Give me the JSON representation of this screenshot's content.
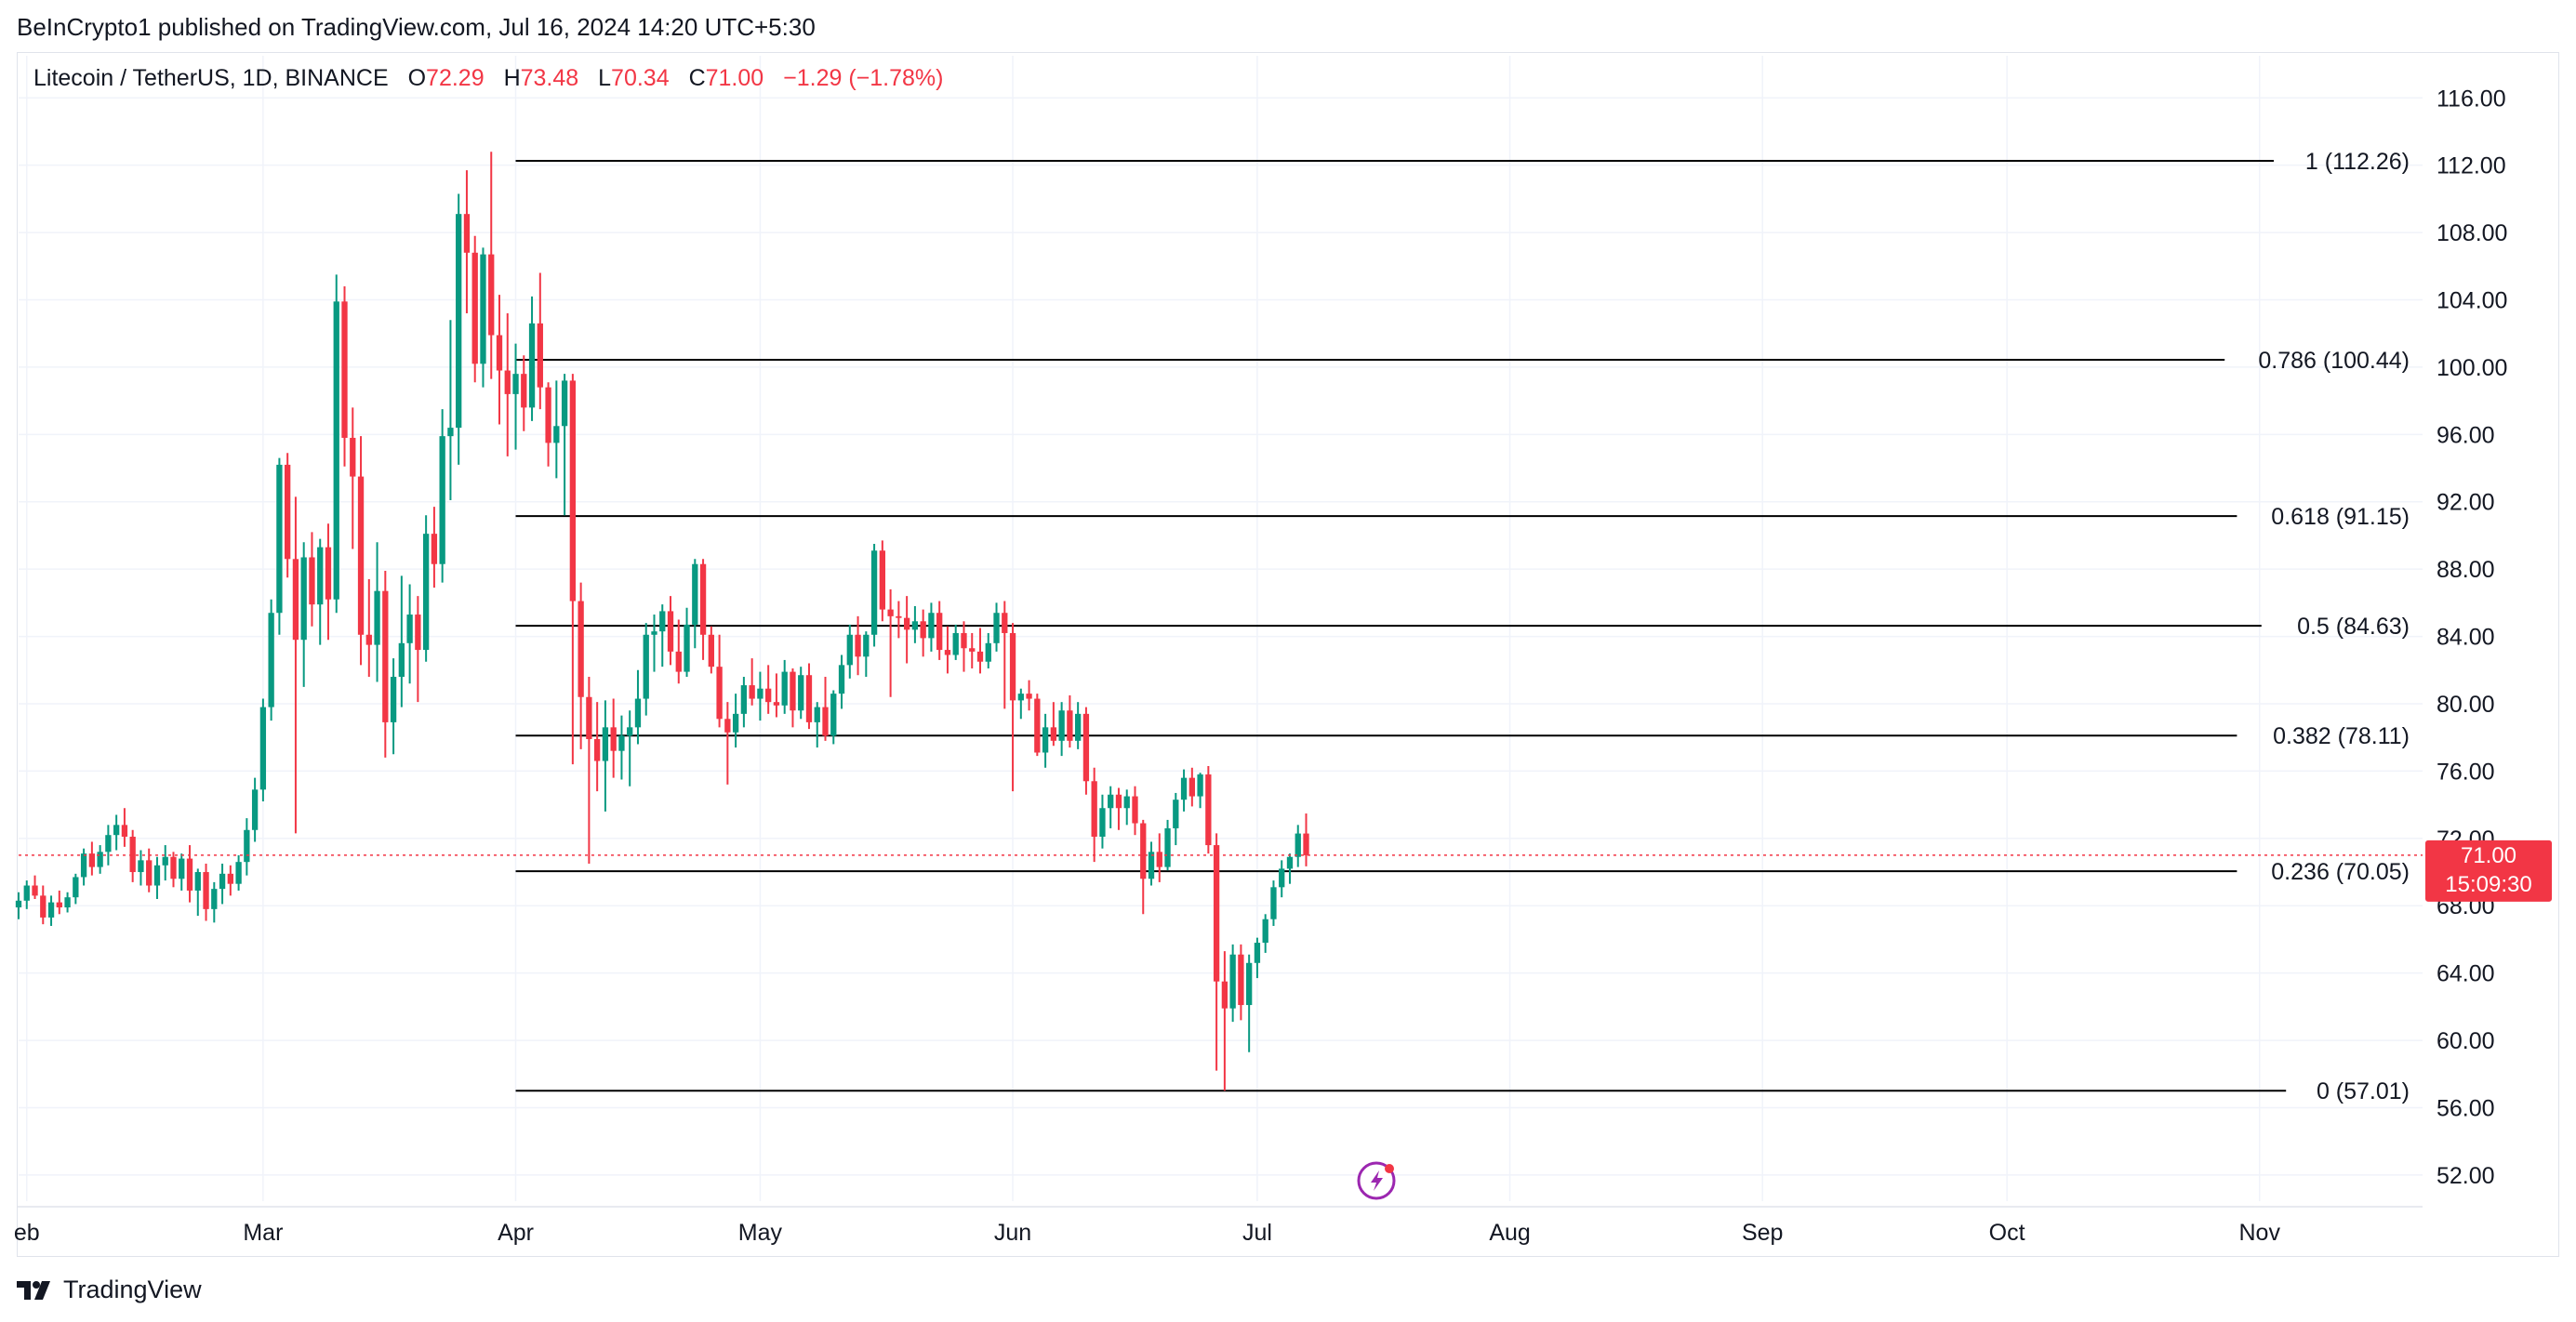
{
  "header": {
    "published": "BeInCrypto1 published on TradingView.com, Jul 16, 2024 14:20 UTC+5:30"
  },
  "legend": {
    "symbol": "Litecoin / TetherUS, 1D, BINANCE",
    "open_label": "O",
    "open": "72.29",
    "high_label": "H",
    "high": "73.48",
    "low_label": "L",
    "low": "70.34",
    "close_label": "C",
    "close": "71.00",
    "change": "−1.29 (−1.78%)"
  },
  "price_tag": {
    "price": "71.00",
    "countdown": "15:09:30"
  },
  "footer": {
    "brand": "TradingView"
  },
  "colors": {
    "up": "#089981",
    "down": "#f23645",
    "fib_line": "#000000",
    "grid": "#f0f3fa"
  },
  "chart_data": {
    "type": "candlestick",
    "title": "Litecoin / TetherUS, 1D, BINANCE",
    "y_axis": {
      "ticks": [
        "116.00",
        "112.00",
        "108.00",
        "104.00",
        "100.00",
        "96.00",
        "92.00",
        "88.00",
        "84.00",
        "80.00",
        "76.00",
        "72.00",
        "68.00",
        "64.00",
        "60.00",
        "56.00",
        "52.00"
      ],
      "range": [
        51,
        118.5
      ]
    },
    "x_axis": {
      "ticks": [
        "eb",
        "Mar",
        "Apr",
        "May",
        "Jun",
        "Jul",
        "Aug",
        "Sep",
        "Oct",
        "Nov"
      ],
      "tick_dates": [
        "2024-02-01",
        "2024-03-01",
        "2024-04-01",
        "2024-05-01",
        "2024-06-01",
        "2024-07-01",
        "2024-08-01",
        "2024-09-01",
        "2024-10-01",
        "2024-11-01"
      ],
      "range": [
        "2024-01-31",
        "2024-11-21"
      ]
    },
    "current_price": 71.0,
    "fibonacci": {
      "start_date": "2024-04-01",
      "levels": [
        {
          "ratio": "1",
          "value": 112.26,
          "label": "1 (112.26)"
        },
        {
          "ratio": "0.786",
          "value": 100.44,
          "label": "0.786 (100.44)"
        },
        {
          "ratio": "0.618",
          "value": 91.15,
          "label": "0.618 (91.15)"
        },
        {
          "ratio": "0.5",
          "value": 84.63,
          "label": "0.5 (84.63)"
        },
        {
          "ratio": "0.382",
          "value": 78.11,
          "label": "0.382 (78.11)"
        },
        {
          "ratio": "0.236",
          "value": 70.05,
          "label": "0.236 (70.05)"
        },
        {
          "ratio": "0",
          "value": 57.01,
          "label": "0 (57.01)"
        }
      ]
    },
    "first_date": "2024-01-31",
    "ohlc": [
      [
        67.9,
        68.8,
        67.2,
        68.3
      ],
      [
        68.3,
        69.5,
        67.8,
        69.2
      ],
      [
        69.2,
        69.8,
        68.4,
        68.6
      ],
      [
        68.6,
        69.2,
        66.9,
        67.3
      ],
      [
        67.3,
        68.6,
        66.8,
        68.2
      ],
      [
        68.2,
        68.9,
        67.5,
        67.9
      ],
      [
        67.9,
        68.8,
        67.6,
        68.5
      ],
      [
        68.5,
        69.9,
        68.1,
        69.7
      ],
      [
        69.7,
        71.4,
        69.2,
        71.1
      ],
      [
        71.1,
        71.8,
        69.8,
        70.3
      ],
      [
        70.3,
        71.6,
        69.9,
        71.2
      ],
      [
        71.2,
        72.8,
        70.4,
        72.2
      ],
      [
        72.2,
        73.4,
        71.3,
        72.8
      ],
      [
        72.8,
        73.8,
        71.5,
        72.1
      ],
      [
        72.1,
        72.5,
        69.4,
        70.0
      ],
      [
        70.0,
        71.3,
        69.2,
        70.7
      ],
      [
        70.7,
        71.4,
        68.8,
        69.2
      ],
      [
        69.2,
        70.9,
        68.4,
        70.4
      ],
      [
        70.4,
        71.6,
        69.5,
        70.9
      ],
      [
        70.9,
        71.2,
        69.1,
        69.6
      ],
      [
        69.6,
        71.1,
        68.9,
        70.8
      ],
      [
        70.8,
        71.6,
        68.2,
        68.9
      ],
      [
        68.9,
        70.2,
        67.4,
        70.0
      ],
      [
        70.0,
        70.5,
        67.1,
        67.8
      ],
      [
        67.8,
        69.4,
        67.0,
        69.0
      ],
      [
        69.0,
        70.5,
        68.1,
        69.9
      ],
      [
        69.9,
        70.4,
        68.6,
        69.3
      ],
      [
        69.3,
        71.0,
        68.9,
        70.6
      ],
      [
        70.6,
        73.2,
        69.8,
        72.5
      ],
      [
        72.5,
        75.6,
        71.8,
        74.9
      ],
      [
        74.9,
        80.3,
        74.2,
        79.8
      ],
      [
        79.8,
        86.2,
        79.0,
        85.4
      ],
      [
        85.4,
        94.6,
        84.1,
        94.2
      ],
      [
        94.2,
        94.9,
        87.5,
        88.6
      ],
      [
        88.6,
        92.3,
        72.3,
        83.8
      ],
      [
        83.8,
        89.6,
        81.0,
        88.7
      ],
      [
        88.7,
        90.2,
        84.6,
        85.9
      ],
      [
        85.9,
        89.8,
        83.5,
        89.3
      ],
      [
        89.3,
        90.7,
        83.8,
        86.2
      ],
      [
        86.2,
        105.5,
        85.4,
        103.9
      ],
      [
        103.9,
        104.8,
        94.1,
        95.8
      ],
      [
        95.8,
        97.6,
        89.2,
        93.5
      ],
      [
        93.5,
        95.9,
        82.3,
        84.1
      ],
      [
        84.1,
        87.4,
        81.6,
        83.5
      ],
      [
        83.5,
        89.6,
        81.3,
        86.7
      ],
      [
        86.7,
        87.9,
        76.8,
        78.9
      ],
      [
        78.9,
        82.7,
        77.0,
        81.6
      ],
      [
        81.6,
        87.6,
        79.8,
        83.6
      ],
      [
        83.6,
        87.1,
        81.2,
        85.3
      ],
      [
        85.3,
        86.4,
        80.1,
        83.2
      ],
      [
        83.2,
        91.2,
        82.5,
        90.1
      ],
      [
        90.1,
        91.7,
        86.9,
        88.3
      ],
      [
        88.3,
        97.5,
        87.2,
        95.9
      ],
      [
        95.9,
        102.8,
        92.1,
        96.4
      ],
      [
        96.4,
        110.3,
        94.2,
        109.1
      ],
      [
        109.1,
        111.7,
        103.2,
        106.8
      ],
      [
        106.8,
        107.8,
        99.1,
        100.2
      ],
      [
        100.2,
        107.1,
        98.8,
        106.7
      ],
      [
        106.7,
        112.8,
        99.3,
        101.9
      ],
      [
        101.9,
        104.3,
        96.6,
        99.8
      ],
      [
        99.8,
        103.2,
        94.7,
        98.4
      ],
      [
        98.4,
        101.4,
        95.1,
        99.6
      ],
      [
        99.6,
        100.7,
        96.2,
        97.6
      ],
      [
        97.6,
        104.2,
        96.8,
        102.6
      ],
      [
        102.6,
        105.6,
        97.5,
        98.8
      ],
      [
        98.8,
        99.1,
        94.1,
        95.5
      ],
      [
        95.5,
        99.2,
        93.4,
        96.5
      ],
      [
        96.5,
        99.6,
        91.2,
        99.2
      ],
      [
        99.2,
        99.6,
        76.4,
        86.1
      ],
      [
        86.1,
        87.2,
        77.3,
        80.4
      ],
      [
        80.4,
        81.6,
        70.5,
        77.9
      ],
      [
        77.9,
        80.1,
        74.8,
        76.6
      ],
      [
        76.6,
        80.2,
        73.6,
        78.6
      ],
      [
        78.6,
        80.3,
        75.6,
        77.2
      ],
      [
        77.2,
        79.3,
        75.5,
        78.1
      ],
      [
        78.1,
        79.6,
        75.1,
        78.6
      ],
      [
        78.6,
        82.0,
        77.6,
        80.3
      ],
      [
        80.3,
        84.8,
        79.3,
        84.1
      ],
      [
        84.1,
        85.3,
        81.9,
        84.3
      ],
      [
        84.3,
        85.9,
        82.2,
        85.5
      ],
      [
        85.5,
        86.4,
        82.3,
        83.1
      ],
      [
        83.1,
        85.0,
        81.2,
        81.9
      ],
      [
        81.9,
        85.7,
        81.6,
        84.7
      ],
      [
        84.7,
        88.6,
        83.3,
        88.3
      ],
      [
        88.3,
        88.6,
        82.6,
        84.1
      ],
      [
        84.1,
        84.6,
        81.8,
        82.2
      ],
      [
        82.2,
        84.1,
        78.6,
        79.1
      ],
      [
        79.1,
        80.1,
        75.2,
        78.3
      ],
      [
        78.3,
        80.6,
        77.4,
        79.4
      ],
      [
        79.4,
        81.6,
        78.6,
        81.1
      ],
      [
        81.1,
        82.7,
        79.9,
        80.3
      ],
      [
        80.3,
        81.9,
        79.0,
        80.9
      ],
      [
        80.9,
        82.3,
        79.4,
        80.1
      ],
      [
        80.1,
        81.8,
        79.2,
        79.9
      ],
      [
        79.9,
        82.6,
        79.4,
        81.9
      ],
      [
        81.9,
        82.1,
        78.6,
        79.6
      ],
      [
        79.6,
        82.2,
        79.1,
        81.7
      ],
      [
        81.7,
        82.4,
        78.5,
        78.9
      ],
      [
        78.9,
        80.1,
        77.4,
        79.8
      ],
      [
        79.8,
        81.6,
        77.8,
        78.1
      ],
      [
        78.1,
        80.8,
        77.6,
        80.6
      ],
      [
        80.6,
        82.9,
        79.7,
        82.3
      ],
      [
        82.3,
        84.7,
        81.5,
        84.1
      ],
      [
        84.1,
        85.2,
        81.7,
        82.8
      ],
      [
        82.8,
        84.3,
        81.6,
        84.1
      ],
      [
        84.1,
        89.5,
        83.4,
        89.1
      ],
      [
        89.1,
        89.7,
        84.9,
        85.6
      ],
      [
        85.6,
        86.8,
        80.4,
        85.2
      ],
      [
        85.2,
        86.1,
        83.9,
        85.1
      ],
      [
        85.1,
        86.4,
        82.4,
        84.4
      ],
      [
        84.4,
        85.8,
        83.6,
        84.9
      ],
      [
        84.9,
        85.6,
        82.8,
        83.9
      ],
      [
        83.9,
        86.0,
        83.1,
        85.4
      ],
      [
        85.4,
        86.1,
        82.6,
        83.2
      ],
      [
        83.2,
        84.6,
        81.8,
        82.9
      ],
      [
        82.9,
        84.7,
        82.6,
        84.2
      ],
      [
        84.2,
        84.9,
        81.9,
        83.3
      ],
      [
        83.3,
        84.2,
        82.1,
        83.1
      ],
      [
        83.1,
        84.5,
        81.8,
        82.5
      ],
      [
        82.5,
        84.2,
        82.1,
        83.6
      ],
      [
        83.6,
        86.0,
        83.1,
        85.4
      ],
      [
        85.4,
        86.1,
        79.7,
        84.2
      ],
      [
        84.2,
        84.8,
        74.8,
        80.2
      ],
      [
        80.2,
        80.9,
        79.1,
        80.6
      ],
      [
        80.6,
        81.4,
        79.6,
        80.3
      ],
      [
        80.3,
        80.6,
        76.9,
        77.1
      ],
      [
        77.1,
        79.4,
        76.2,
        78.6
      ],
      [
        78.6,
        80.1,
        77.5,
        77.8
      ],
      [
        77.8,
        80.1,
        76.9,
        79.6
      ],
      [
        79.6,
        80.5,
        77.4,
        77.8
      ],
      [
        77.8,
        80.1,
        77.3,
        79.4
      ],
      [
        79.4,
        79.8,
        74.6,
        75.4
      ],
      [
        75.4,
        76.2,
        70.6,
        72.1
      ],
      [
        72.1,
        74.6,
        71.4,
        73.8
      ],
      [
        73.8,
        75.1,
        72.6,
        74.6
      ],
      [
        74.6,
        75.0,
        72.5,
        73.8
      ],
      [
        73.8,
        74.9,
        72.8,
        74.5
      ],
      [
        74.5,
        75.1,
        72.2,
        72.9
      ],
      [
        72.9,
        73.1,
        67.5,
        69.6
      ],
      [
        69.6,
        71.8,
        69.2,
        71.2
      ],
      [
        71.2,
        72.3,
        69.4,
        70.3
      ],
      [
        70.3,
        73.1,
        70.1,
        72.6
      ],
      [
        72.6,
        74.7,
        71.6,
        74.3
      ],
      [
        74.3,
        76.1,
        73.6,
        75.6
      ],
      [
        75.6,
        76.2,
        73.9,
        74.5
      ],
      [
        74.5,
        75.9,
        73.8,
        75.8
      ],
      [
        75.8,
        76.3,
        71.1,
        71.6
      ],
      [
        71.6,
        72.3,
        58.2,
        63.5
      ],
      [
        63.5,
        65.3,
        57.01,
        61.9
      ],
      [
        61.9,
        65.7,
        61.1,
        65.1
      ],
      [
        65.1,
        65.7,
        61.2,
        62.1
      ],
      [
        62.1,
        65.1,
        59.3,
        64.6
      ],
      [
        64.6,
        66.1,
        63.7,
        65.8
      ],
      [
        65.8,
        67.5,
        65.2,
        67.2
      ],
      [
        67.2,
        69.5,
        66.8,
        69.1
      ],
      [
        69.1,
        70.7,
        68.5,
        70.2
      ],
      [
        70.2,
        71.1,
        69.3,
        70.9
      ],
      [
        70.9,
        72.8,
        70.3,
        72.29
      ],
      [
        72.29,
        73.48,
        70.34,
        71.0
      ]
    ]
  }
}
